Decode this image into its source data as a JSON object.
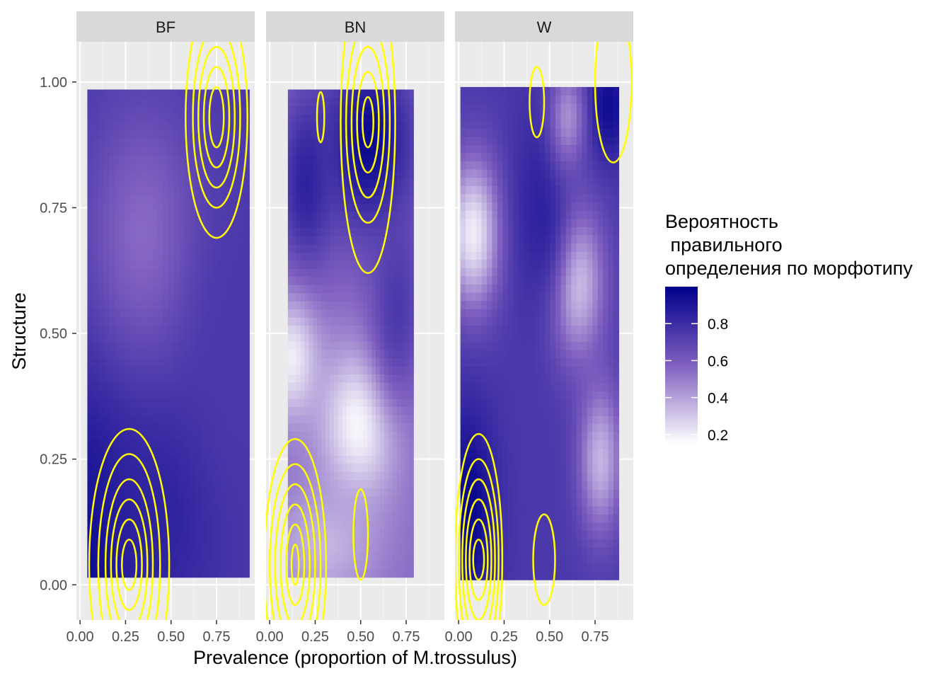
{
  "chart_data": {
    "type": "heatmap",
    "xlabel": "Prevalence (proportion of M.trossulus)",
    "ylabel": "Structure",
    "xlim": [
      -0.02,
      0.96
    ],
    "ylim": [
      -0.07,
      1.08
    ],
    "x_ticks": [
      "0.00",
      "0.25",
      "0.50",
      "0.75"
    ],
    "y_ticks": [
      "0.00",
      "0.25",
      "0.50",
      "0.75",
      "1.00"
    ],
    "grid": true,
    "contour_color": "#ffff00",
    "legend": {
      "title_lines": [
        "Вероятность",
        " правильного",
        "определения по морфотипу"
      ],
      "ticks": [
        "0.8",
        "0.6",
        "0.4",
        "0.2"
      ],
      "tick_values": [
        0.8,
        0.6,
        0.4,
        0.2
      ],
      "range": [
        0.15,
        1.0
      ],
      "low_color": "#ffffff",
      "high_color": "#00008b",
      "placement": "right"
    },
    "panels": [
      {
        "name": "BF",
        "x_range": [
          0.04,
          0.93
        ],
        "y_range": [
          0.015,
          0.985
        ],
        "hotspots": [
          {
            "x": 0.05,
            "y": 0.05,
            "v": 0.97,
            "sx": 0.3,
            "sy": 0.35
          },
          {
            "x": 0.45,
            "y": 0.15,
            "v": 0.85,
            "sx": 0.35,
            "sy": 0.25
          },
          {
            "x": 0.35,
            "y": 0.7,
            "v": 0.55,
            "sx": 0.3,
            "sy": 0.25
          },
          {
            "x": 0.85,
            "y": 0.45,
            "v": 0.75,
            "sx": 0.25,
            "sy": 0.3
          }
        ],
        "base": 0.75
      },
      {
        "name": "BN",
        "x_range": [
          0.1,
          0.79
        ],
        "y_range": [
          0.015,
          0.985
        ],
        "hotspots": [
          {
            "x": 0.55,
            "y": 0.88,
            "v": 0.97,
            "sx": 0.25,
            "sy": 0.18
          },
          {
            "x": 0.2,
            "y": 0.8,
            "v": 0.85,
            "sx": 0.15,
            "sy": 0.18
          },
          {
            "x": 0.5,
            "y": 0.32,
            "v": 0.15,
            "sx": 0.22,
            "sy": 0.15
          },
          {
            "x": 0.12,
            "y": 0.45,
            "v": 0.2,
            "sx": 0.15,
            "sy": 0.12
          },
          {
            "x": 0.7,
            "y": 0.55,
            "v": 0.75,
            "sx": 0.15,
            "sy": 0.2
          },
          {
            "x": 0.3,
            "y": 0.08,
            "v": 0.35,
            "sx": 0.3,
            "sy": 0.12
          }
        ],
        "base": 0.55
      },
      {
        "name": "W",
        "x_range": [
          0.01,
          0.88
        ],
        "y_range": [
          0.01,
          0.99
        ],
        "hotspots": [
          {
            "x": 0.05,
            "y": 0.15,
            "v": 0.98,
            "sx": 0.15,
            "sy": 0.2
          },
          {
            "x": 0.82,
            "y": 0.95,
            "v": 0.95,
            "sx": 0.12,
            "sy": 0.1
          },
          {
            "x": 0.08,
            "y": 0.7,
            "v": 0.2,
            "sx": 0.15,
            "sy": 0.15
          },
          {
            "x": 0.65,
            "y": 0.6,
            "v": 0.3,
            "sx": 0.15,
            "sy": 0.15
          },
          {
            "x": 0.78,
            "y": 0.25,
            "v": 0.35,
            "sx": 0.12,
            "sy": 0.15
          },
          {
            "x": 0.45,
            "y": 0.75,
            "v": 0.85,
            "sx": 0.15,
            "sy": 0.2
          },
          {
            "x": 0.6,
            "y": 0.93,
            "v": 0.45,
            "sx": 0.1,
            "sy": 0.1
          }
        ],
        "base": 0.75
      }
    ]
  }
}
